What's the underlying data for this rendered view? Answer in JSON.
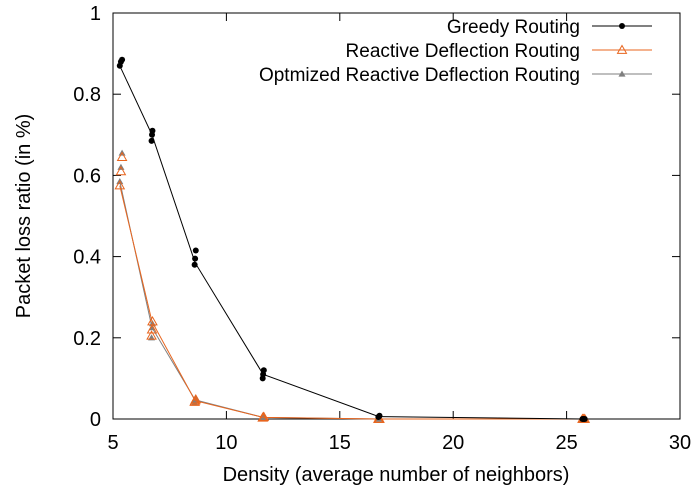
{
  "chart_data": {
    "type": "line",
    "xlabel": "Density (average number of neighbors)",
    "ylabel": "Packet loss ratio (in %)",
    "xlim": [
      5,
      30
    ],
    "ylim": [
      0,
      1
    ],
    "x_ticks": [
      "5",
      "10",
      "15",
      "20",
      "25",
      "30"
    ],
    "y_ticks": [
      "0",
      "0.2",
      "0.4",
      "0.6",
      "0.8",
      "1"
    ],
    "grid": false,
    "legend_position": "top-right",
    "series": [
      {
        "name": "Greedy Routing",
        "color": "#000000",
        "marker": "circle",
        "points": [
          {
            "x": 5.3,
            "y": 0.87
          },
          {
            "x": 5.35,
            "y": 0.88
          },
          {
            "x": 5.4,
            "y": 0.885
          },
          {
            "x": 6.7,
            "y": 0.685
          },
          {
            "x": 6.72,
            "y": 0.7
          },
          {
            "x": 6.74,
            "y": 0.71
          },
          {
            "x": 8.6,
            "y": 0.38
          },
          {
            "x": 8.62,
            "y": 0.395
          },
          {
            "x": 8.65,
            "y": 0.415
          },
          {
            "x": 11.6,
            "y": 0.1
          },
          {
            "x": 11.62,
            "y": 0.11
          },
          {
            "x": 11.65,
            "y": 0.12
          },
          {
            "x": 16.7,
            "y": 0.005
          },
          {
            "x": 16.72,
            "y": 0.006
          },
          {
            "x": 16.75,
            "y": 0.008
          },
          {
            "x": 25.7,
            "y": 0.0
          },
          {
            "x": 25.75,
            "y": 0.0
          },
          {
            "x": 25.8,
            "y": 0.0
          }
        ],
        "line": [
          {
            "x": 5.3,
            "y": 0.87
          },
          {
            "x": 6.72,
            "y": 0.7
          },
          {
            "x": 8.62,
            "y": 0.385
          },
          {
            "x": 11.62,
            "y": 0.11
          },
          {
            "x": 16.72,
            "y": 0.006
          },
          {
            "x": 25.75,
            "y": 0.0
          }
        ]
      },
      {
        "name": "Reactive Deflection Routing",
        "color": "#e8651e",
        "marker": "triangle-open",
        "points": [
          {
            "x": 5.3,
            "y": 0.575
          },
          {
            "x": 5.35,
            "y": 0.61
          },
          {
            "x": 5.4,
            "y": 0.645
          },
          {
            "x": 6.7,
            "y": 0.205
          },
          {
            "x": 6.72,
            "y": 0.22
          },
          {
            "x": 6.74,
            "y": 0.24
          },
          {
            "x": 8.6,
            "y": 0.042
          },
          {
            "x": 8.62,
            "y": 0.045
          },
          {
            "x": 8.65,
            "y": 0.048
          },
          {
            "x": 11.6,
            "y": 0.003
          },
          {
            "x": 11.62,
            "y": 0.004
          },
          {
            "x": 11.65,
            "y": 0.005
          },
          {
            "x": 16.7,
            "y": 0.0
          },
          {
            "x": 16.72,
            "y": 0.0
          },
          {
            "x": 16.75,
            "y": 0.0
          },
          {
            "x": 25.7,
            "y": 0.0
          },
          {
            "x": 25.75,
            "y": 0.0
          },
          {
            "x": 25.8,
            "y": 0.0
          }
        ],
        "line": [
          {
            "x": 5.3,
            "y": 0.575
          },
          {
            "x": 6.72,
            "y": 0.24
          },
          {
            "x": 8.62,
            "y": 0.045
          },
          {
            "x": 11.62,
            "y": 0.004
          },
          {
            "x": 16.72,
            "y": 0.0
          },
          {
            "x": 25.75,
            "y": 0.0
          }
        ]
      },
      {
        "name": "Optmized Reactive Deflection Routing",
        "color": "#7f7f7f",
        "marker": "triangle-filled",
        "points": [
          {
            "x": 5.3,
            "y": 0.585
          },
          {
            "x": 5.35,
            "y": 0.62
          },
          {
            "x": 5.4,
            "y": 0.655
          },
          {
            "x": 6.7,
            "y": 0.2
          },
          {
            "x": 6.72,
            "y": 0.225
          },
          {
            "x": 6.74,
            "y": 0.235
          },
          {
            "x": 8.6,
            "y": 0.04
          },
          {
            "x": 8.62,
            "y": 0.047
          },
          {
            "x": 8.65,
            "y": 0.05
          },
          {
            "x": 11.6,
            "y": 0.002
          },
          {
            "x": 11.62,
            "y": 0.004
          },
          {
            "x": 11.65,
            "y": 0.005
          },
          {
            "x": 16.7,
            "y": 0.0
          },
          {
            "x": 16.72,
            "y": 0.0
          },
          {
            "x": 16.75,
            "y": 0.0
          },
          {
            "x": 25.7,
            "y": 0.0
          },
          {
            "x": 25.75,
            "y": 0.0
          },
          {
            "x": 25.8,
            "y": 0.0
          }
        ],
        "line": [
          {
            "x": 5.3,
            "y": 0.585
          },
          {
            "x": 6.72,
            "y": 0.225
          },
          {
            "x": 8.62,
            "y": 0.047
          },
          {
            "x": 11.62,
            "y": 0.004
          },
          {
            "x": 16.72,
            "y": 0.0
          },
          {
            "x": 25.75,
            "y": 0.0
          }
        ]
      }
    ]
  }
}
